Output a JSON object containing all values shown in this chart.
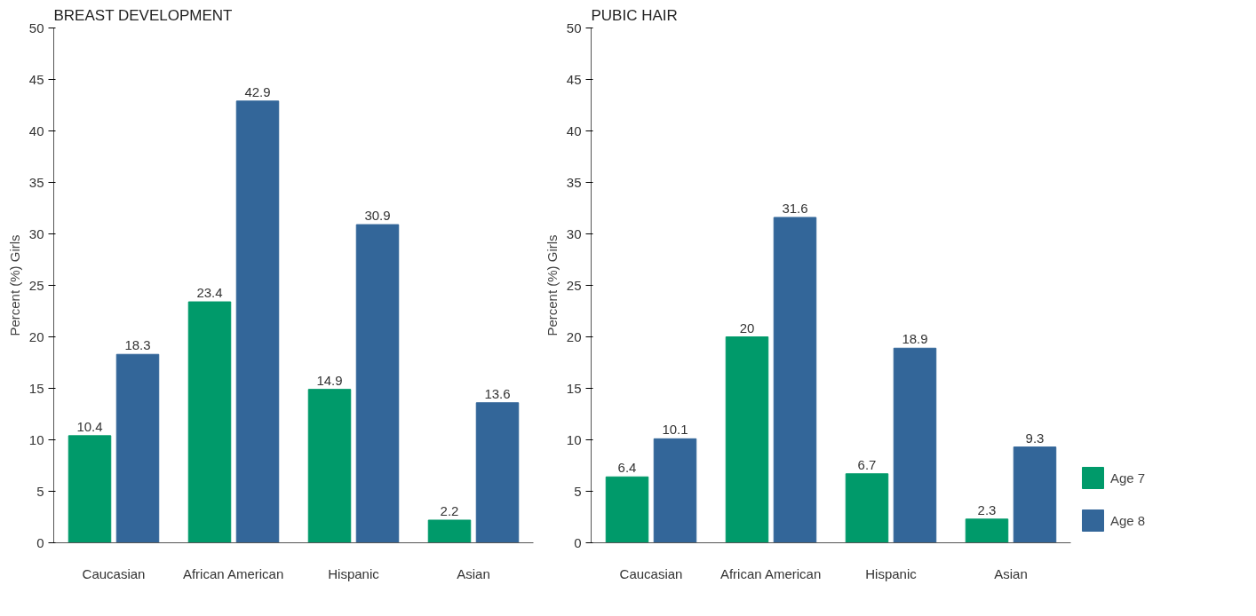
{
  "chart_data": [
    {
      "type": "bar",
      "title": "BREAST DEVELOPMENT",
      "ylabel": "Percent (%) Girls",
      "categories": [
        "Caucasian",
        "African American",
        "Hispanic",
        "Asian"
      ],
      "series": [
        {
          "color": "#009a6a",
          "values": [
            10.4,
            23.4,
            14.9,
            2.2
          ]
        },
        {
          "color": "#336699",
          "values": [
            18.3,
            42.9,
            30.9,
            13.6
          ]
        }
      ],
      "ylim": [
        0,
        50
      ],
      "yticks": [
        0,
        5,
        10,
        15,
        20,
        25,
        30,
        35,
        40,
        45,
        50
      ],
      "grid": false,
      "data_labels": true
    },
    {
      "type": "bar",
      "title": "PUBIC HAIR",
      "ylabel": "Percent (%) Girls",
      "categories": [
        "Caucasian",
        "African American",
        "Hispanic",
        "Asian"
      ],
      "series": [
        {
          "name": "Age 7",
          "color": "#009a6a",
          "values": [
            6.4,
            20,
            6.7,
            2.3
          ]
        },
        {
          "name": "Age 8",
          "color": "#336699",
          "values": [
            10.1,
            31.6,
            18.9,
            9.3
          ]
        }
      ],
      "ylim": [
        0,
        50
      ],
      "yticks": [
        0,
        5,
        10,
        15,
        20,
        25,
        30,
        35,
        40,
        45,
        50
      ],
      "grid": false,
      "data_labels": true,
      "legend": "right"
    }
  ]
}
